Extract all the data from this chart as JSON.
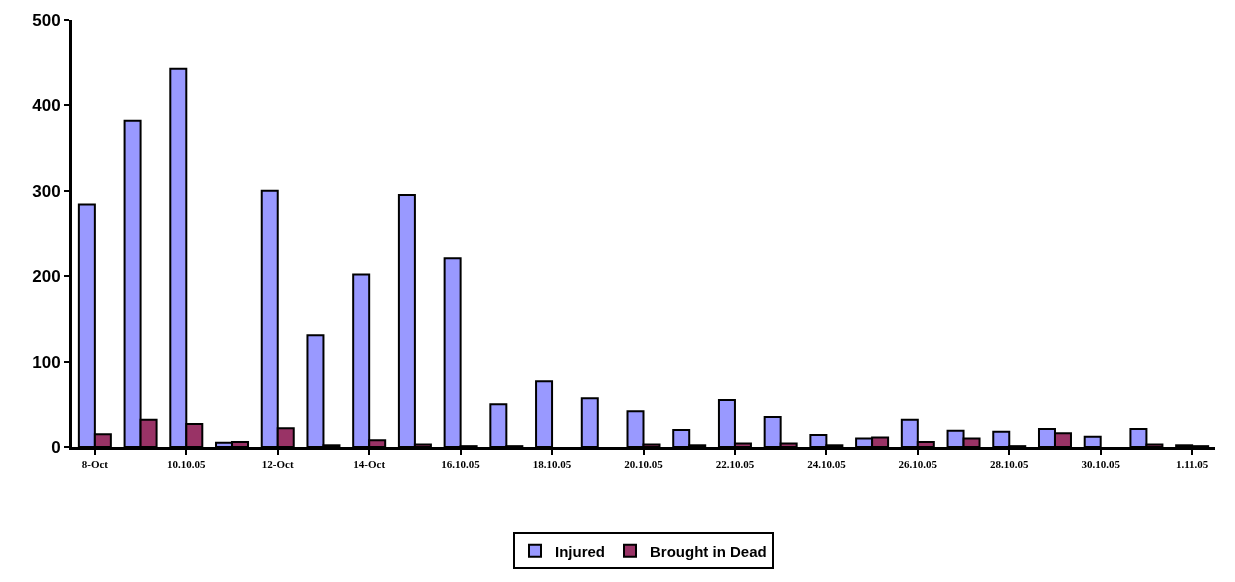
{
  "chart_data": {
    "type": "bar",
    "categories": [
      "8-Oct",
      null,
      "10.10.05",
      null,
      "12-Oct",
      null,
      "14-Oct",
      null,
      "16.10.05",
      null,
      "18.10.05",
      null,
      "20.10.05",
      null,
      "22.10.05",
      null,
      "24.10.05",
      null,
      "26.10.05",
      null,
      "28.10.05",
      null,
      "30.10.05",
      null,
      "1.11.05"
    ],
    "series": [
      {
        "name": "Injured",
        "color": "#9999ff",
        "values": [
          284,
          382,
          443,
          5,
          300,
          131,
          202,
          295,
          221,
          50,
          77,
          57,
          42,
          20,
          55,
          35,
          14,
          10,
          32,
          19,
          18,
          21,
          12,
          21,
          2
        ]
      },
      {
        "name": "Brought in Dead",
        "color": "#993366",
        "values": [
          15,
          32,
          27,
          6,
          22,
          2,
          8,
          3,
          1,
          1,
          0,
          0,
          3,
          2,
          4,
          4,
          2,
          11,
          6,
          10,
          1,
          16,
          0,
          3,
          1
        ]
      }
    ],
    "ylim": [
      0,
      500
    ],
    "yticks": [
      0,
      100,
      200,
      300,
      400,
      500
    ],
    "grid": false,
    "legend": "bottom"
  }
}
